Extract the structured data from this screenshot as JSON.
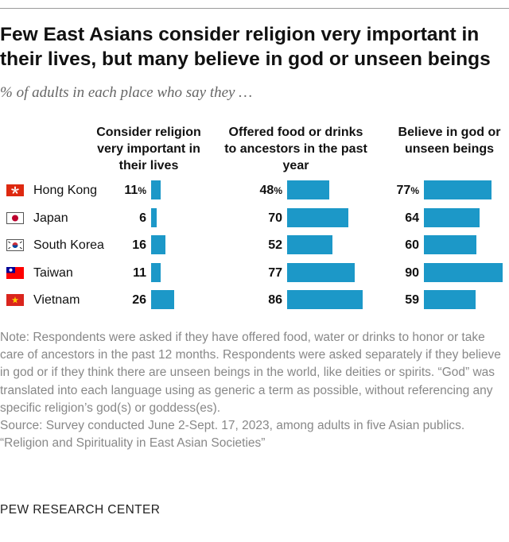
{
  "title": "Few East Asians consider religion very important in their lives, but many believe in god or unseen beings",
  "subtitle": "% of adults in each place who say they …",
  "colors": {
    "bar": "#1c98c8"
  },
  "columns": [
    {
      "heading": "Consider religion very important in their lives"
    },
    {
      "heading": "Offered food or drinks to ancestors in the past year"
    },
    {
      "heading": "Believe in god or unseen beings"
    }
  ],
  "rows": [
    {
      "country": "Hong Kong",
      "flag_icon": "hong-kong-flag-icon",
      "values": [
        "11",
        "48",
        "77"
      ]
    },
    {
      "country": "Japan",
      "flag_icon": "japan-flag-icon",
      "values": [
        "6",
        "70",
        "64"
      ]
    },
    {
      "country": "South Korea",
      "flag_icon": "south-korea-flag-icon",
      "values": [
        "16",
        "52",
        "60"
      ]
    },
    {
      "country": "Taiwan",
      "flag_icon": "taiwan-flag-icon",
      "values": [
        "11",
        "77",
        "90"
      ]
    },
    {
      "country": "Vietnam",
      "flag_icon": "vietnam-flag-icon",
      "values": [
        "26",
        "86",
        "59"
      ]
    }
  ],
  "percent_sign": "%",
  "chart_data": {
    "type": "bar",
    "categories": [
      "Hong Kong",
      "Japan",
      "South Korea",
      "Taiwan",
      "Vietnam"
    ],
    "series": [
      {
        "name": "Consider religion very important in their lives",
        "values": [
          11,
          6,
          16,
          11,
          26
        ]
      },
      {
        "name": "Offered food or drinks to ancestors in the past year",
        "values": [
          48,
          70,
          52,
          77,
          86
        ]
      },
      {
        "name": "Believe in god or unseen beings",
        "values": [
          77,
          64,
          60,
          90,
          59
        ]
      }
    ],
    "unit": "%",
    "xlim": [
      0,
      100
    ],
    "grid": false,
    "legend": "none"
  },
  "notes": {
    "note": "Note: Respondents were asked if they have offered food, water or drinks to honor or take care of ancestors in the past 12 months. Respondents were asked separately if they believe in god or if they think there are unseen beings in the world, like deities or spirits. “God” was translated into each language using as generic a term as possible, without referencing any specific religion’s god(s) or goddess(es).",
    "source": "Source: Survey conducted June 2-Sept. 17, 2023, among adults in five Asian publics.",
    "report": "“Religion and Spirituality in East Asian Societies”"
  },
  "org": "PEW RESEARCH CENTER"
}
